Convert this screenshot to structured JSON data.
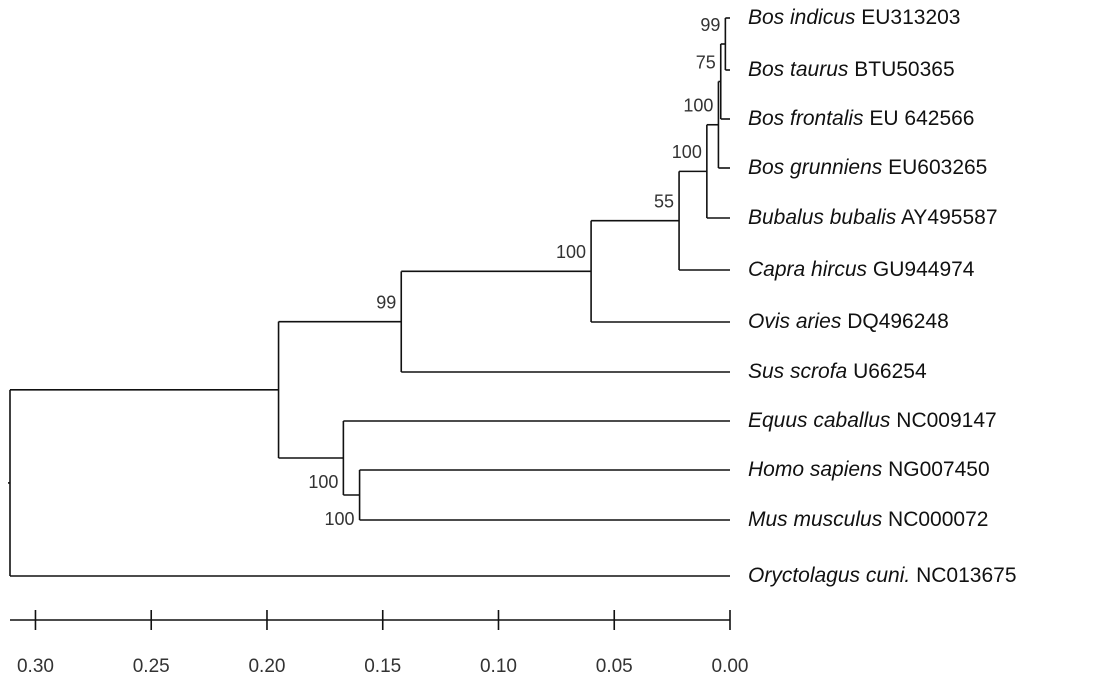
{
  "tree": {
    "height": 0.311,
    "children": [
      {
        "height": 0.195,
        "children": [
          {
            "height": 0.142,
            "bootstrap": 99,
            "children": [
              {
                "height": 0.06,
                "bootstrap": 100,
                "children": [
                  {
                    "height": 0.022,
                    "bootstrap": 55,
                    "children": [
                      {
                        "height": 0.01,
                        "bootstrap": 100,
                        "children": [
                          {
                            "height": 0.005,
                            "bootstrap": 100,
                            "children": [
                              {
                                "height": 0.004,
                                "bootstrap": 75,
                                "children": [
                                  {
                                    "height": 0.002,
                                    "bootstrap": 99,
                                    "children": [
                                      {
                                        "species": "Bos indicus",
                                        "accession": "EU313203"
                                      },
                                      {
                                        "species": "Bos taurus",
                                        "accession": "BTU50365"
                                      }
                                    ]
                                  },
                                  {
                                    "species": "Bos frontalis",
                                    "accession": "EU 642566"
                                  }
                                ]
                              },
                              {
                                "species": "Bos grunniens",
                                "accession": "EU603265"
                              }
                            ]
                          },
                          {
                            "species": "Bubalus bubalis",
                            "accession": "AY495587"
                          }
                        ]
                      },
                      {
                        "species": "Capra hircus",
                        "accession": "GU944974"
                      }
                    ]
                  },
                  {
                    "species": "Ovis aries",
                    "accession": "DQ496248"
                  }
                ]
              },
              {
                "species": "Sus scrofa",
                "accession": "U66254"
              }
            ]
          },
          {
            "height": 0.167,
            "bootstrap": 100,
            "children": [
              {
                "species": "Equus caballus",
                "accession": "NC009147"
              },
              {
                "height": 0.16,
                "bootstrap": 100,
                "children": [
                  {
                    "species": "Homo sapiens",
                    "accession": "NG007450"
                  },
                  {
                    "species": "Mus musculus",
                    "accession": "NC000072"
                  }
                ]
              }
            ]
          }
        ]
      },
      {
        "species": "Oryctolagus cuni.",
        "accession": "NC013675"
      }
    ]
  },
  "scale": {
    "xlim": [
      0.311,
      0
    ],
    "ticks": [
      {
        "value": 0.3,
        "label": "0.30"
      },
      {
        "value": 0.25,
        "label": "0.25"
      },
      {
        "value": 0.2,
        "label": "0.20"
      },
      {
        "value": 0.15,
        "label": "0.15"
      },
      {
        "value": 0.1,
        "label": "0.10"
      },
      {
        "value": 0.05,
        "label": "0.05"
      },
      {
        "value": 0,
        "label": "0.00"
      }
    ]
  }
}
